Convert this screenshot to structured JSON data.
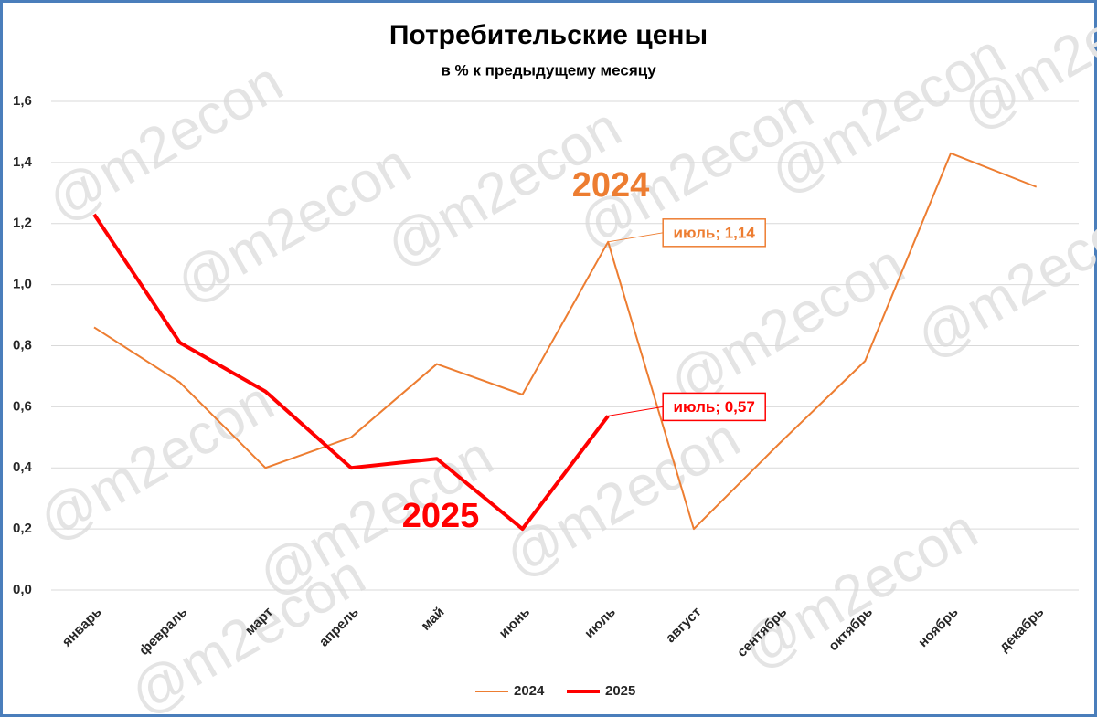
{
  "chart_data": {
    "type": "line",
    "title": "Потребительские цены",
    "subtitle": "в % к предыдущему месяцу",
    "watermark": "@m2econ",
    "categories": [
      "январь",
      "февраль",
      "март",
      "апрель",
      "май",
      "июнь",
      "июль",
      "август",
      "сентябрь",
      "октябрь",
      "ноябрь",
      "декабрь"
    ],
    "series": [
      {
        "name": "2024",
        "color": "#ed7d31",
        "width": 2,
        "label": "2024",
        "values": [
          0.86,
          0.68,
          0.4,
          0.5,
          0.74,
          0.64,
          1.14,
          0.2,
          0.48,
          0.75,
          1.43,
          1.32
        ],
        "value_labels": [
          null,
          null,
          null,
          null,
          null,
          null,
          "июль; 1,14",
          null,
          null,
          null,
          null,
          null
        ]
      },
      {
        "name": "2025",
        "color": "#ff0000",
        "width": 4,
        "label": "2025",
        "values": [
          1.23,
          0.81,
          0.65,
          0.4,
          0.43,
          0.2,
          0.57,
          null,
          null,
          null,
          null,
          null
        ],
        "value_labels": [
          null,
          null,
          null,
          null,
          null,
          null,
          "июль; 0,57",
          null,
          null,
          null,
          null,
          null
        ]
      }
    ],
    "ylim": [
      0,
      1.6
    ],
    "yticks": [
      {
        "value": 0,
        "label": "0,0"
      },
      {
        "value": 0.2,
        "label": "0,2"
      },
      {
        "value": 0.4,
        "label": "0,4"
      },
      {
        "value": 0.6,
        "label": "0,6"
      },
      {
        "value": 0.8,
        "label": "0,8"
      },
      {
        "value": 1.0,
        "label": "1,0"
      },
      {
        "value": 1.2,
        "label": "1,2"
      },
      {
        "value": 1.4,
        "label": "1,4"
      },
      {
        "value": 1.6,
        "label": "1,6"
      }
    ],
    "grid": true,
    "legend": "bottom"
  }
}
